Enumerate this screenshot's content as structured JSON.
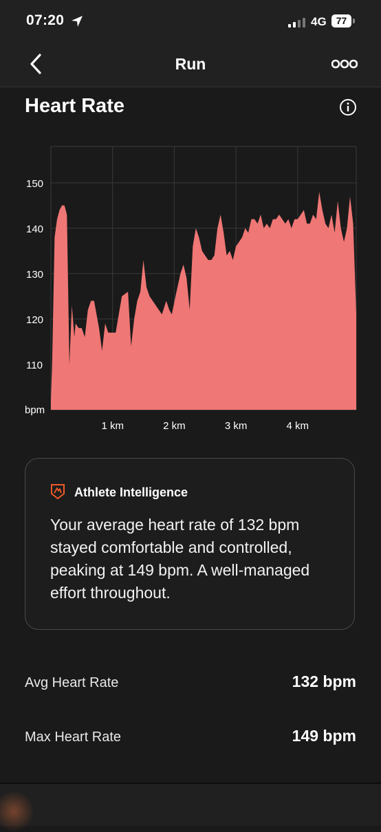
{
  "status_bar": {
    "time": "07:20",
    "network": "4G",
    "battery": "77"
  },
  "nav": {
    "title": "Run"
  },
  "section": {
    "title": "Heart Rate"
  },
  "chart_data": {
    "type": "area",
    "ylabel": "bpm",
    "ylim": [
      100,
      158
    ],
    "yticks": [
      110,
      120,
      130,
      140,
      150
    ],
    "ytick_labels": [
      "110",
      "120",
      "130",
      "140",
      "150"
    ],
    "xlim": [
      0,
      4.95
    ],
    "xticks": [
      1,
      2,
      3,
      4
    ],
    "xtick_labels": [
      "1 km",
      "2 km",
      "3 km",
      "4 km"
    ],
    "fill_color": "#ef7775",
    "grid": true,
    "series": [
      {
        "x": [
          0,
          0.02,
          0.06,
          0.1,
          0.14,
          0.18,
          0.22,
          0.26,
          0.3,
          0.34,
          0.38,
          0.4,
          0.45,
          0.5,
          0.55,
          0.6,
          0.65,
          0.7,
          0.78,
          0.83,
          0.88,
          0.93,
          1.0,
          1.05,
          1.1,
          1.15,
          1.25,
          1.3,
          1.35,
          1.4,
          1.45,
          1.5,
          1.55,
          1.6,
          1.65,
          1.7,
          1.75,
          1.8,
          1.87,
          1.92,
          1.96,
          2.02,
          2.1,
          2.15,
          2.2,
          2.25,
          2.3,
          2.35,
          2.4,
          2.45,
          2.5,
          2.55,
          2.6,
          2.65,
          2.7,
          2.75,
          2.8,
          2.85,
          2.9,
          2.95,
          3.0,
          3.05,
          3.1,
          3.15,
          3.2,
          3.25,
          3.3,
          3.35,
          3.4,
          3.45,
          3.5,
          3.55,
          3.6,
          3.65,
          3.7,
          3.75,
          3.8,
          3.85,
          3.9,
          3.95,
          4.0,
          4.05,
          4.1,
          4.15,
          4.2,
          4.25,
          4.3,
          4.35,
          4.4,
          4.45,
          4.5,
          4.55,
          4.6,
          4.65,
          4.7,
          4.75,
          4.8,
          4.85,
          4.9,
          4.95
        ],
        "values": [
          102,
          110,
          138,
          142,
          144,
          145,
          145,
          143,
          110,
          123,
          116,
          119,
          118,
          118,
          116,
          122,
          124,
          124,
          118,
          113,
          119,
          117,
          117,
          117,
          121,
          125,
          126,
          114,
          120,
          124,
          126,
          133,
          127,
          125,
          124,
          123,
          122,
          121,
          124,
          122,
          121,
          125,
          130,
          132,
          129,
          122,
          136,
          140,
          138,
          135,
          134,
          133,
          133,
          134,
          140,
          143,
          139,
          134,
          135,
          133,
          136,
          137,
          138,
          140,
          139,
          142,
          142,
          141,
          143,
          140,
          141,
          140,
          142,
          142,
          143,
          142,
          141,
          142,
          140,
          142,
          142,
          143,
          144,
          141,
          141,
          143,
          142,
          148,
          144,
          141,
          140,
          143,
          139,
          146,
          140,
          137,
          140,
          147,
          141,
          121
        ]
      }
    ]
  },
  "insight": {
    "title": "Athlete Intelligence",
    "text": "Your average heart rate of 132 bpm stayed comfortable and controlled, peaking at 149 bpm. A well-managed effort throughout.",
    "accent": "#f05a28"
  },
  "stats": {
    "avg_label": "Avg Heart Rate",
    "avg_value": "132 bpm",
    "max_label": "Max Heart Rate",
    "max_value": "149 bpm"
  }
}
